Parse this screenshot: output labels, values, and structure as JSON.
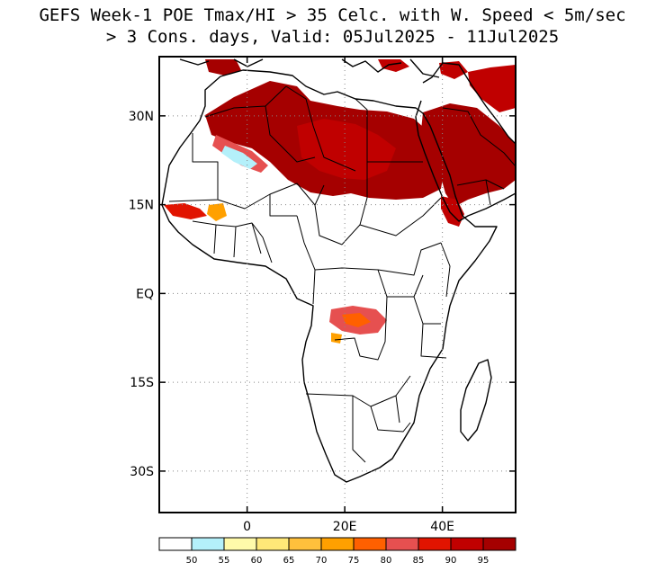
{
  "title": {
    "line1": "GEFS Week-1 POE Tmax/HI > 35 Celc. with W. Speed < 5m/sec",
    "line2": "> 3 Cons. days, Valid: 05Jul2025 - 11Jul2025"
  },
  "axes": {
    "lat_ticks": [
      {
        "value": 30,
        "label": "30N"
      },
      {
        "value": 15,
        "label": "15N"
      },
      {
        "value": 0,
        "label": "EQ"
      },
      {
        "value": -15,
        "label": "15S"
      },
      {
        "value": -30,
        "label": "30S"
      }
    ],
    "lon_ticks": [
      {
        "value": 0,
        "label": "0"
      },
      {
        "value": 20,
        "label": "20E"
      },
      {
        "value": 40,
        "label": "40E"
      }
    ],
    "lon_range": [
      -18,
      55
    ],
    "lat_range": [
      -37,
      40
    ]
  },
  "colorbar": {
    "labels": [
      "50",
      "55",
      "60",
      "65",
      "70",
      "75",
      "80",
      "85",
      "90",
      "95"
    ],
    "colors": [
      "#ffffff",
      "#b4f0fa",
      "#fffaaa",
      "#ffe878",
      "#ffc03c",
      "#ffa000",
      "#ff6000",
      "#e65050",
      "#e11400",
      "#c00000",
      "#a50000"
    ]
  }
}
